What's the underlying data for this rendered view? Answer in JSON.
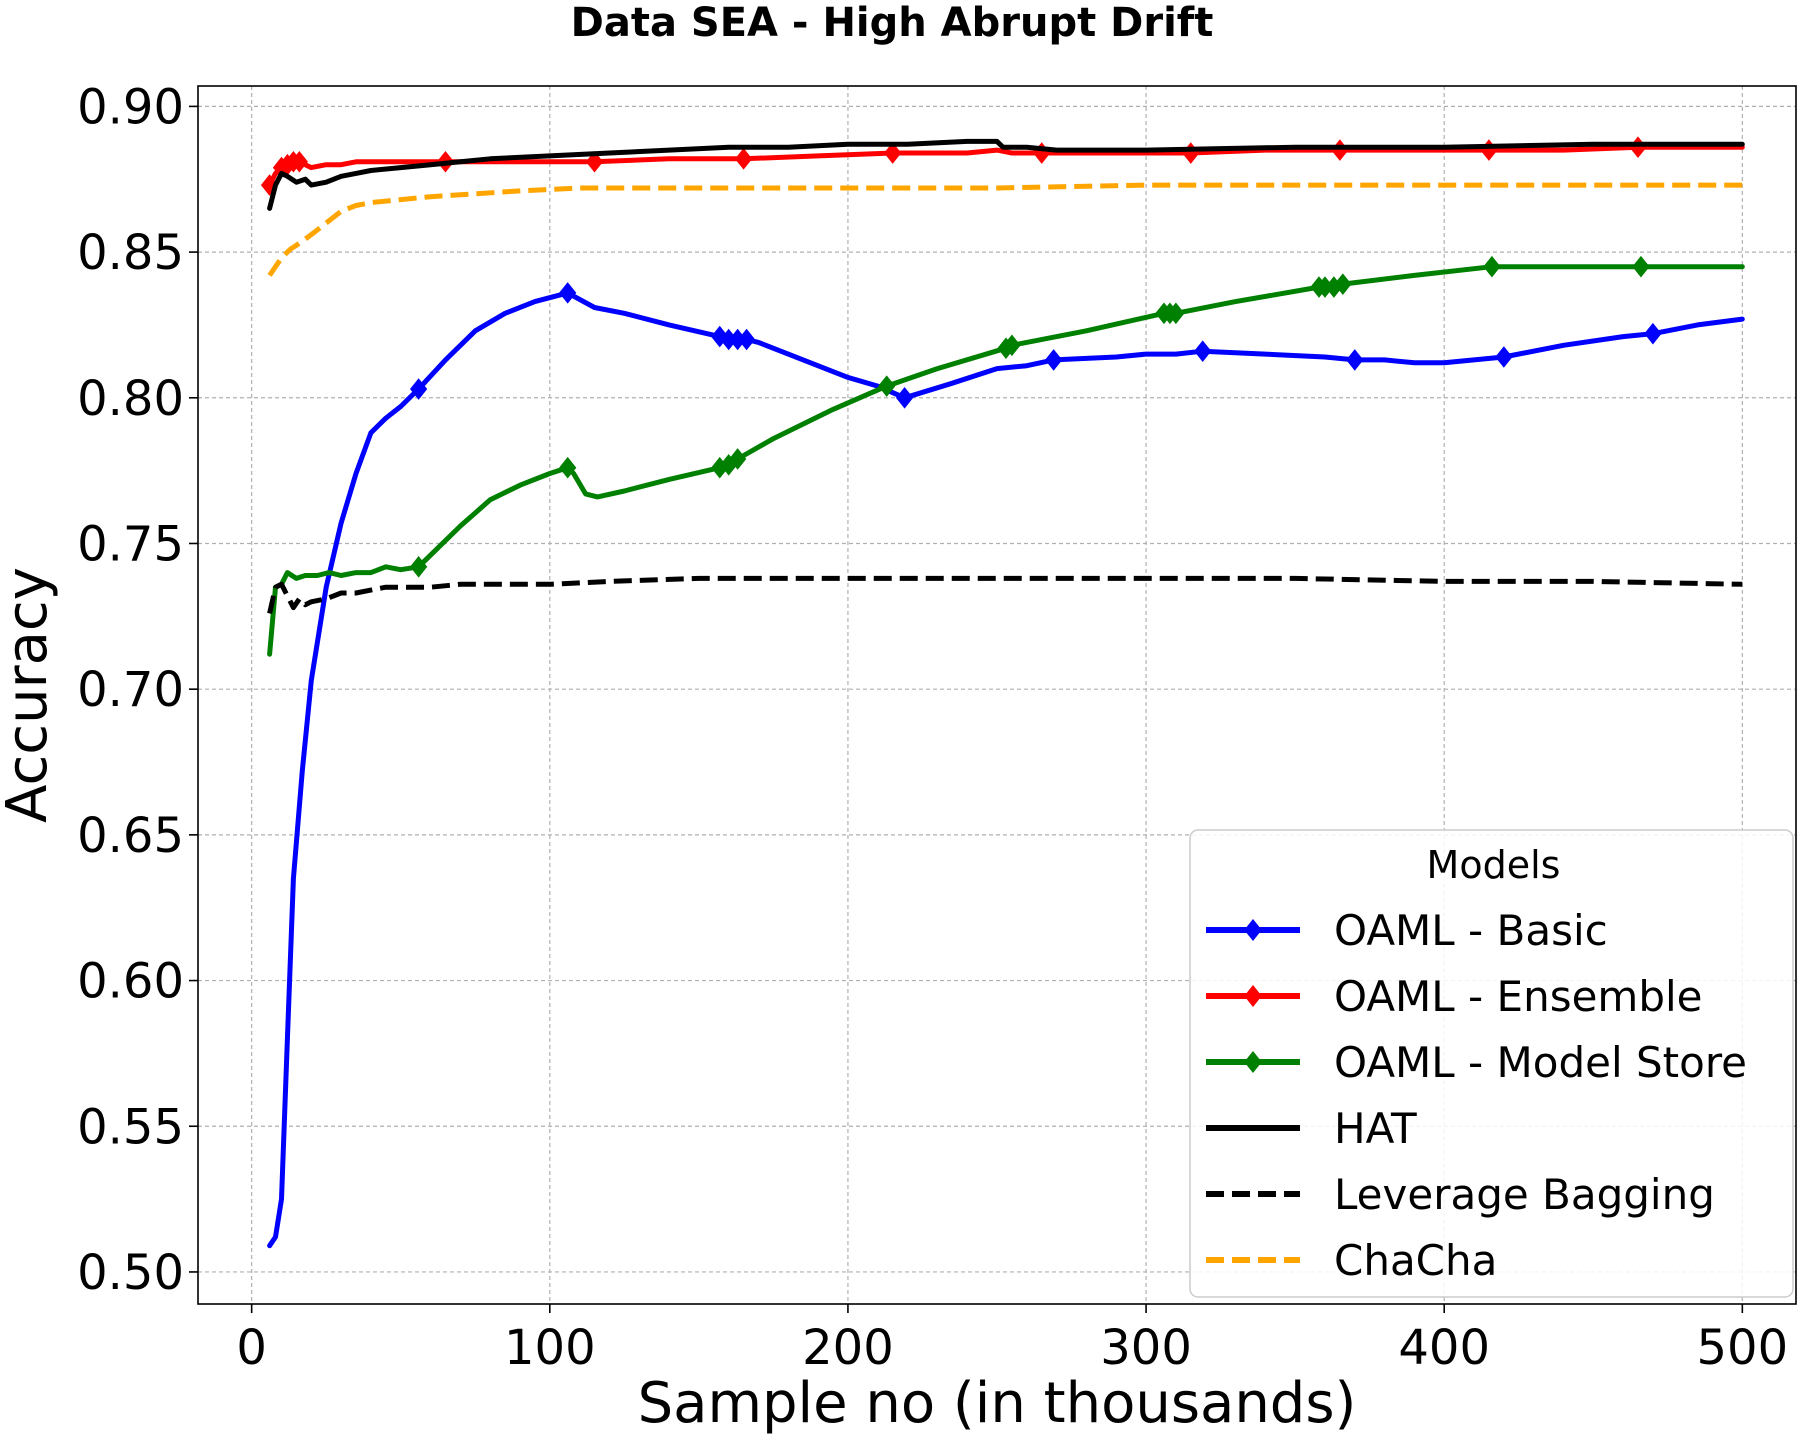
{
  "chart_data": {
    "type": "line",
    "title": "Data SEA - High Abrupt Drift",
    "xlabel": "Sample no (in thousands)",
    "ylabel": "Accuracy",
    "xlim": [
      -18,
      518
    ],
    "ylim": [
      0.489,
      0.907
    ],
    "xticks": [
      0,
      100,
      200,
      300,
      400,
      500
    ],
    "xtick_labels": [
      "0",
      "100",
      "200",
      "300",
      "400",
      "500"
    ],
    "yticks": [
      0.5,
      0.55,
      0.6,
      0.65,
      0.7,
      0.75,
      0.8,
      0.85,
      0.9
    ],
    "ytick_labels": [
      "0.50",
      "0.55",
      "0.60",
      "0.65",
      "0.70",
      "0.75",
      "0.80",
      "0.85",
      "0.90"
    ],
    "grid": true,
    "legend": {
      "title": "Models",
      "placement": "lower-right"
    },
    "series": [
      {
        "name": "OAML - Basic",
        "color": "#0000ff",
        "style": "solid",
        "marker": "diamond",
        "x": [
          6,
          8,
          10,
          12,
          14,
          17,
          20,
          25,
          30,
          35,
          40,
          45,
          50,
          56,
          65,
          75,
          85,
          95,
          106,
          115,
          125,
          140,
          157,
          160,
          163,
          166,
          170,
          185,
          200,
          210,
          219,
          235,
          250,
          260,
          269,
          290,
          300,
          310,
          319,
          340,
          360,
          370,
          380,
          390,
          400,
          410,
          420,
          440,
          460,
          470,
          485,
          500
        ],
        "y": [
          0.509,
          0.512,
          0.525,
          0.58,
          0.635,
          0.672,
          0.703,
          0.735,
          0.757,
          0.774,
          0.788,
          0.793,
          0.797,
          0.803,
          0.813,
          0.823,
          0.829,
          0.833,
          0.836,
          0.831,
          0.829,
          0.825,
          0.821,
          0.82,
          0.82,
          0.82,
          0.819,
          0.813,
          0.807,
          0.804,
          0.8,
          0.805,
          0.81,
          0.811,
          0.813,
          0.814,
          0.815,
          0.815,
          0.816,
          0.815,
          0.814,
          0.813,
          0.813,
          0.812,
          0.812,
          0.813,
          0.814,
          0.818,
          0.821,
          0.822,
          0.825,
          0.827
        ],
        "markers_at": [
          56,
          106,
          157,
          160,
          163,
          166,
          219,
          269,
          319,
          370,
          420,
          470
        ]
      },
      {
        "name": "OAML - Ensemble",
        "color": "#ff0000",
        "style": "solid",
        "marker": "diamond",
        "x": [
          6,
          8,
          10,
          12,
          14,
          16,
          18,
          20,
          25,
          30,
          35,
          40,
          45,
          50,
          65,
          80,
          100,
          115,
          140,
          165,
          190,
          215,
          240,
          250,
          255,
          265,
          290,
          315,
          340,
          365,
          390,
          415,
          440,
          465,
          500
        ],
        "y": [
          0.873,
          0.877,
          0.879,
          0.88,
          0.881,
          0.881,
          0.88,
          0.879,
          0.88,
          0.88,
          0.881,
          0.881,
          0.881,
          0.881,
          0.881,
          0.881,
          0.881,
          0.881,
          0.882,
          0.882,
          0.883,
          0.884,
          0.884,
          0.885,
          0.884,
          0.884,
          0.884,
          0.884,
          0.885,
          0.885,
          0.885,
          0.885,
          0.885,
          0.886,
          0.886
        ],
        "markers_at": [
          6,
          10,
          12,
          14,
          16,
          65,
          115,
          165,
          215,
          265,
          315,
          365,
          415,
          465
        ]
      },
      {
        "name": "OAML - Model Store",
        "color": "#008000",
        "style": "solid",
        "marker": "diamond",
        "x": [
          6,
          8,
          10,
          12,
          15,
          18,
          22,
          26,
          30,
          35,
          40,
          45,
          50,
          56,
          62,
          70,
          80,
          90,
          100,
          106,
          108,
          112,
          116,
          125,
          140,
          157,
          160,
          163,
          175,
          195,
          213,
          230,
          253,
          255,
          280,
          306,
          308,
          310,
          330,
          358,
          360,
          363,
          366,
          390,
          416,
          440,
          466,
          500
        ],
        "y": [
          0.712,
          0.735,
          0.736,
          0.74,
          0.738,
          0.739,
          0.739,
          0.74,
          0.739,
          0.74,
          0.74,
          0.742,
          0.741,
          0.742,
          0.748,
          0.756,
          0.765,
          0.77,
          0.774,
          0.776,
          0.774,
          0.767,
          0.766,
          0.768,
          0.772,
          0.776,
          0.777,
          0.779,
          0.786,
          0.796,
          0.804,
          0.81,
          0.817,
          0.818,
          0.823,
          0.829,
          0.829,
          0.829,
          0.833,
          0.838,
          0.838,
          0.838,
          0.839,
          0.842,
          0.845,
          0.845,
          0.845,
          0.845
        ],
        "markers_at": [
          56,
          106,
          157,
          160,
          163,
          213,
          253,
          255,
          306,
          308,
          310,
          358,
          360,
          363,
          366,
          416,
          466
        ]
      },
      {
        "name": "HAT",
        "color": "#000000",
        "style": "solid",
        "marker": "none",
        "x": [
          6,
          8,
          10,
          12,
          15,
          18,
          20,
          25,
          30,
          35,
          40,
          50,
          60,
          70,
          80,
          100,
          120,
          140,
          160,
          180,
          200,
          220,
          240,
          250,
          252,
          260,
          270,
          300,
          350,
          400,
          450,
          500
        ],
        "y": [
          0.865,
          0.873,
          0.877,
          0.876,
          0.874,
          0.875,
          0.873,
          0.874,
          0.876,
          0.877,
          0.878,
          0.879,
          0.88,
          0.881,
          0.882,
          0.883,
          0.884,
          0.885,
          0.886,
          0.886,
          0.887,
          0.887,
          0.888,
          0.888,
          0.886,
          0.886,
          0.885,
          0.885,
          0.886,
          0.886,
          0.887,
          0.887
        ],
        "markers_at": []
      },
      {
        "name": "Leverage Bagging",
        "color": "#000000",
        "style": "dashed",
        "marker": "none",
        "x": [
          6,
          8,
          10,
          12,
          14,
          16,
          18,
          20,
          25,
          30,
          35,
          40,
          45,
          50,
          60,
          70,
          80,
          100,
          120,
          150,
          200,
          250,
          300,
          350,
          400,
          450,
          500
        ],
        "y": [
          0.726,
          0.735,
          0.736,
          0.732,
          0.728,
          0.731,
          0.729,
          0.73,
          0.731,
          0.733,
          0.733,
          0.734,
          0.735,
          0.735,
          0.735,
          0.736,
          0.736,
          0.736,
          0.737,
          0.738,
          0.738,
          0.738,
          0.738,
          0.738,
          0.737,
          0.737,
          0.736
        ],
        "markers_at": []
      },
      {
        "name": "ChaCha",
        "color": "#ffa500",
        "style": "dashed",
        "marker": "none",
        "x": [
          6,
          8,
          10,
          13,
          16,
          20,
          25,
          30,
          35,
          40,
          50,
          60,
          75,
          90,
          110,
          140,
          170,
          200,
          250,
          300,
          350,
          400,
          450,
          500
        ],
        "y": [
          0.842,
          0.845,
          0.848,
          0.851,
          0.853,
          0.856,
          0.86,
          0.864,
          0.866,
          0.867,
          0.868,
          0.869,
          0.87,
          0.871,
          0.872,
          0.872,
          0.872,
          0.872,
          0.872,
          0.873,
          0.873,
          0.873,
          0.873,
          0.873
        ],
        "markers_at": []
      }
    ]
  }
}
